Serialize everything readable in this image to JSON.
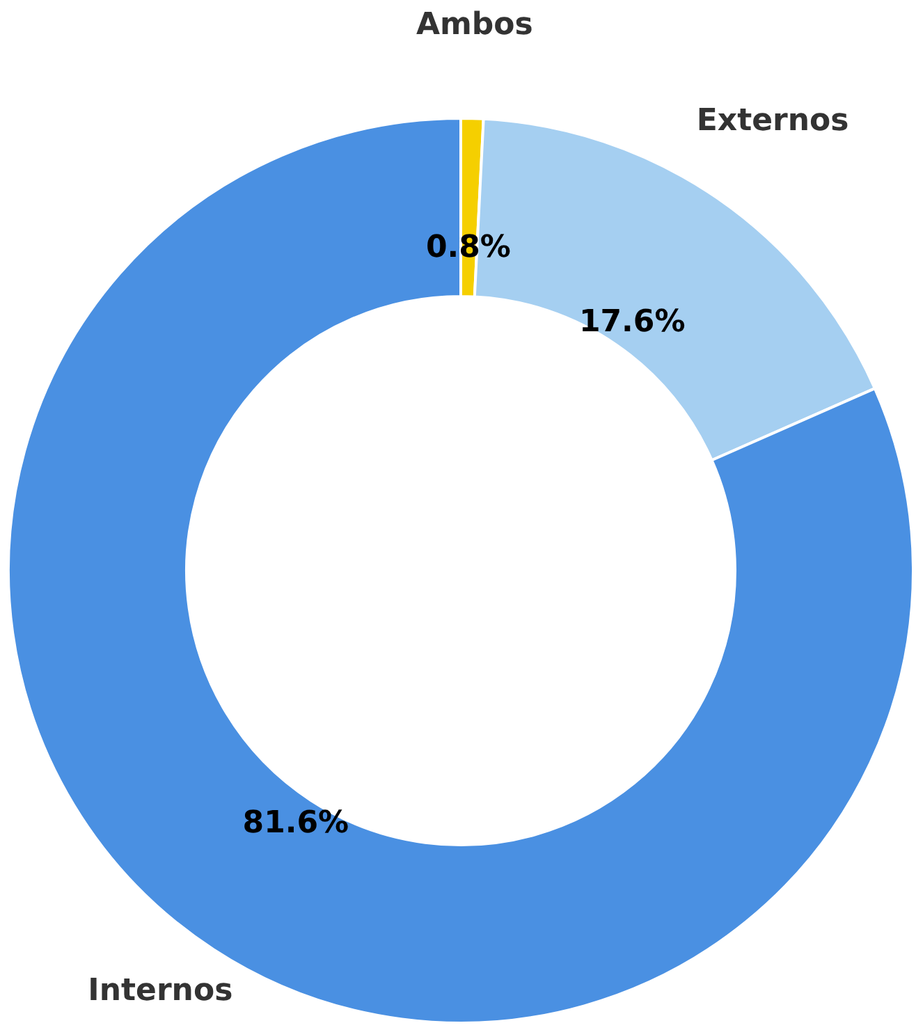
{
  "chart_data": {
    "type": "donut",
    "categories": [
      "Ambos",
      "Externos",
      "Internos"
    ],
    "values": [
      0.8,
      17.6,
      81.6
    ],
    "colors": [
      "#f5cf00",
      "#a5cff1",
      "#4a90e2"
    ],
    "data_labels": true,
    "value_labels": [
      "0.8%",
      "17.6%",
      "81.6%"
    ],
    "legend": false
  }
}
